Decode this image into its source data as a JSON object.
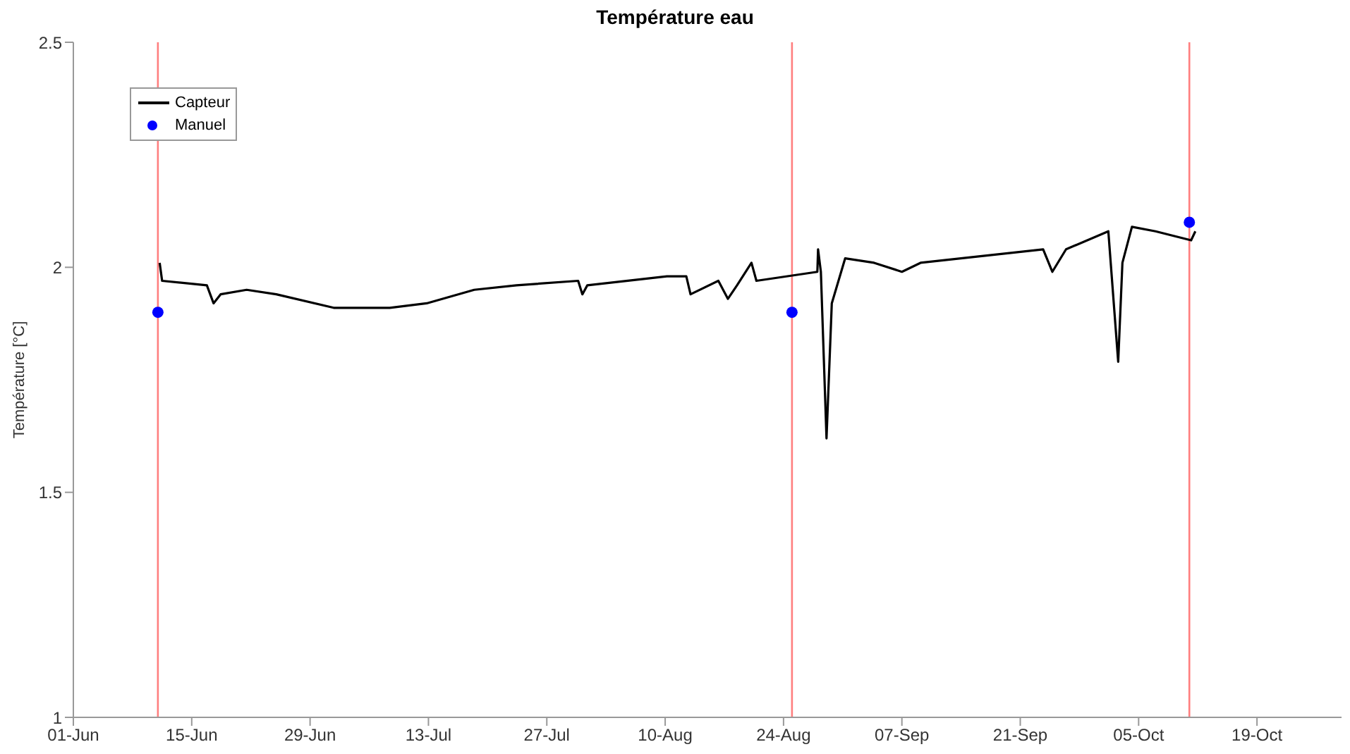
{
  "chart_data": {
    "type": "line",
    "title": "Température eau",
    "ylabel": "Température [°C]",
    "xlim": [
      "--06-01",
      "--10-29"
    ],
    "xticks": [
      {
        "value": "--06-01",
        "label": "01-Jun"
      },
      {
        "value": "--06-15",
        "label": "15-Jun"
      },
      {
        "value": "--06-29",
        "label": "29-Jun"
      },
      {
        "value": "--07-13",
        "label": "13-Jul"
      },
      {
        "value": "--07-27",
        "label": "27-Jul"
      },
      {
        "value": "--08-10",
        "label": "10-Aug"
      },
      {
        "value": "--08-24",
        "label": "24-Aug"
      },
      {
        "value": "--09-07",
        "label": "07-Sep"
      },
      {
        "value": "--09-21",
        "label": "21-Sep"
      },
      {
        "value": "--10-05",
        "label": "05-Oct"
      },
      {
        "value": "--10-19",
        "label": "19-Oct"
      }
    ],
    "ylim": [
      1,
      2.5
    ],
    "yticks": [
      1,
      1.5,
      2,
      2.5
    ],
    "legend": "top left",
    "series": [
      {
        "name": "Capteur",
        "color": "#000000",
        "marker": "none",
        "line_style": "solid",
        "x": [
          "--06-11T05:00",
          "--06-11T12:00",
          "--06-16T19:00",
          "--06-17T14:00",
          "--06-18T10:00",
          "--06-21T12:00",
          "--06-25",
          "--07-01T19:00",
          "--07-08T10:00",
          "--07-12T19:00",
          "--07-18T10:00",
          "--07-23T10:00",
          "--07-30T17:00",
          "--07-31T05:00",
          "--07-31T19:00",
          "--08-10T05:00",
          "--08-12T12:00",
          "--08-13",
          "--08-16T07:00",
          "--08-17T10:00",
          "--08-18T12:00",
          "--08-20T05:00",
          "--08-20T19:00",
          "--08-28",
          "--08-28T02:00",
          "--08-28T10:00",
          "--08-29T02:00",
          "--08-29T17:00",
          "--08-31T07:00",
          "--09-03T17:00",
          "--09-07",
          "--09-09T05:00",
          "--09-23T17:00",
          "--09-24T19:00",
          "--09-26T10:00",
          "--10-01T10:00",
          "--10-02T14:00",
          "--10-03T02:00",
          "--10-04T05:00",
          "--10-07",
          "--10-11T05:00",
          "--10-11T17:00"
        ],
        "values": [
          2.01,
          1.97,
          1.96,
          1.92,
          1.94,
          1.95,
          1.94,
          1.91,
          1.91,
          1.92,
          1.95,
          1.96,
          1.97,
          1.94,
          1.96,
          1.98,
          1.98,
          1.94,
          1.97,
          1.93,
          1.96,
          2.01,
          1.97,
          1.99,
          2.04,
          1.99,
          1.62,
          1.92,
          2.02,
          2.01,
          1.99,
          2.01,
          2.04,
          1.99,
          2.04,
          2.08,
          1.79,
          2.01,
          2.09,
          2.08,
          2.06,
          2.08
        ]
      },
      {
        "name": "Manuel",
        "type": "scatter",
        "color": "#0000ff",
        "marker": "circle",
        "x": [
          "--06-11",
          "--08-25",
          "--10-11"
        ],
        "values": [
          1.9,
          1.9,
          2.1
        ]
      }
    ],
    "ref_lines": [
      {
        "axis": "x",
        "value": "--06-11",
        "color": "#ff7f7f"
      },
      {
        "axis": "x",
        "value": "--08-25",
        "color": "#ff7f7f"
      },
      {
        "axis": "x",
        "value": "--10-11",
        "color": "#ff7f7f"
      }
    ]
  }
}
